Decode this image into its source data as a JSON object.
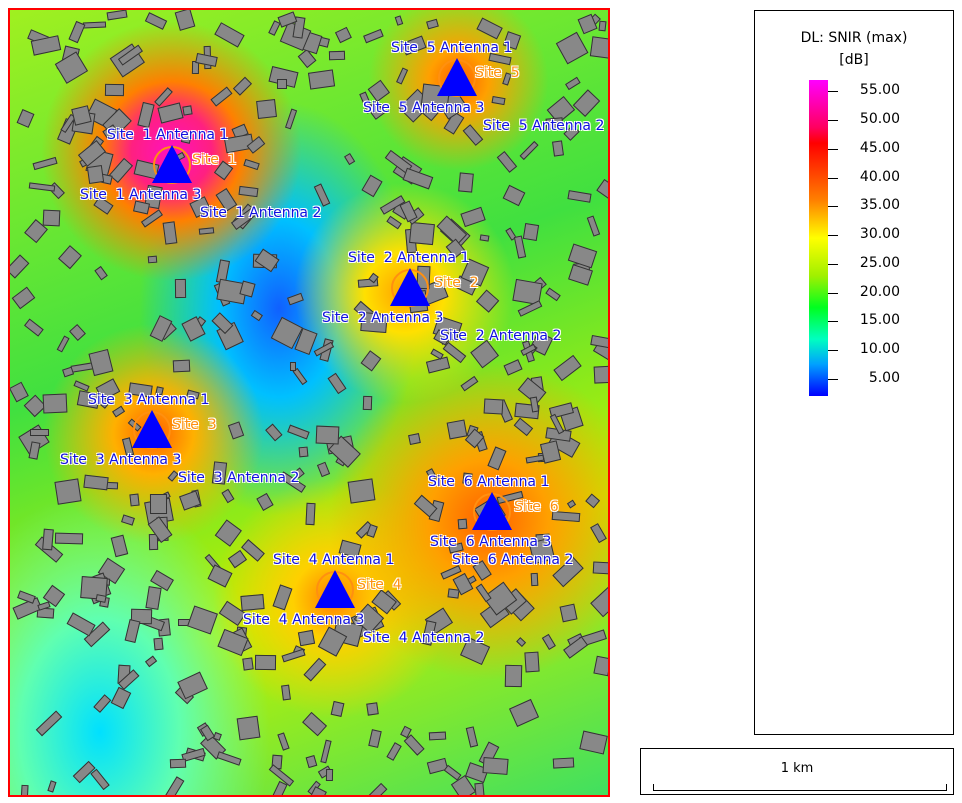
{
  "legend": {
    "title": "DL: SNIR (max)",
    "unit": "[dB]",
    "ticks": [
      "55.00",
      "50.00",
      "45.00",
      "40.00",
      "35.00",
      "30.00",
      "25.00",
      "20.00",
      "15.00",
      "10.00",
      "5.00"
    ],
    "tick_values": [
      55,
      50,
      45,
      40,
      35,
      30,
      25,
      20,
      15,
      10,
      5
    ],
    "range": [
      2,
      57
    ]
  },
  "scale_bar": {
    "label": "1 km"
  },
  "colors": {
    "frame": "#ff0000",
    "antenna": "#0000ff",
    "site_label": "#ff9010",
    "antenna_label": "#1010e0",
    "buildings": "#888888"
  },
  "sites": [
    {
      "name": "Site  1",
      "a1": "Site  1 Antenna 1",
      "a2": "Site  1 Antenna 2",
      "a3": "Site  1 Antenna 3"
    },
    {
      "name": "Site  2",
      "a1": "Site  2 Antenna 1",
      "a2": "Site  2 Antenna 2",
      "a3": "Site  2 Antenna 3"
    },
    {
      "name": "Site  3",
      "a1": "Site  3 Antenna 1",
      "a2": "Site  3 Antenna 2",
      "a3": "Site  3 Antenna 3"
    },
    {
      "name": "Site  4",
      "a1": "Site  4 Antenna 1",
      "a2": "Site  4 Antenna 2",
      "a3": "Site  4 Antenna 3"
    },
    {
      "name": "Site  5",
      "a1": "Site  5 Antenna 1",
      "a2": "Site  5 Antenna 2",
      "a3": "Site  5 Antenna 3"
    },
    {
      "name": "Site  6",
      "a1": "Site  6 Antenna 1",
      "a2": "Site  6 Antenna 2",
      "a3": "Site  6 Antenna 3"
    }
  ]
}
